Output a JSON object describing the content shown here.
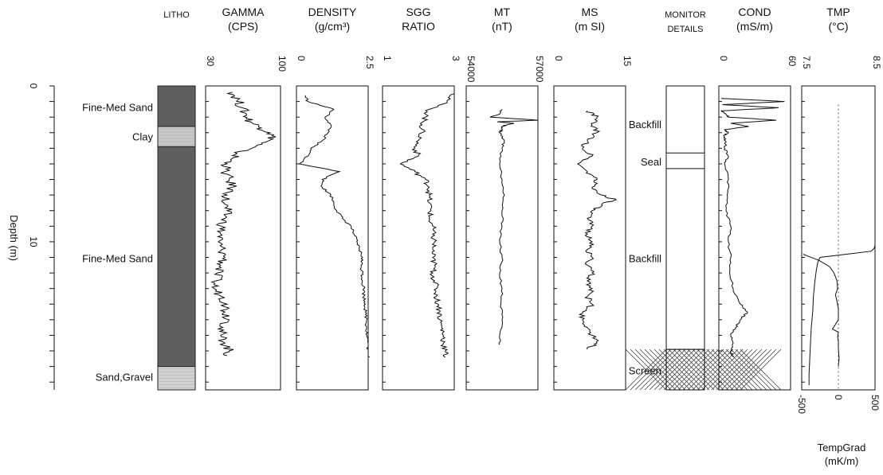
{
  "chart_data": {
    "type": "line",
    "depth_axis": {
      "label": "Depth (m)",
      "range": [
        0,
        19.5
      ],
      "ticks": [
        0,
        10
      ]
    },
    "tracks": [
      {
        "id": "litho",
        "header": [
          "LITHO"
        ],
        "type": "lithology",
        "layers": [
          {
            "name": "Fine-Med Sand",
            "top": 0,
            "bottom": 2.6,
            "label": "Fine-Med Sand",
            "label_depth": 1.4,
            "fill": "#5f5f5f"
          },
          {
            "name": "Clay",
            "top": 2.6,
            "bottom": 3.9,
            "label": "Clay",
            "label_depth": 3.3,
            "fill": "#c9c9c9"
          },
          {
            "name": "Fine-Med Sand",
            "top": 3.9,
            "bottom": 18.0,
            "label": "Fine-Med Sand",
            "label_depth": 11.1,
            "fill": "#5f5f5f"
          },
          {
            "name": "Sand,Gravel",
            "top": 18.0,
            "bottom": 19.5,
            "label": "Sand,Gravel",
            "label_depth": 18.7,
            "fill": "#d3d3d3"
          }
        ]
      },
      {
        "id": "gamma",
        "header": [
          "GAMMA",
          "(CPS)"
        ],
        "xlim": [
          30,
          100
        ],
        "ticks": [
          "30",
          "100"
        ],
        "series": {
          "depth": [
            0.4,
            0.9,
            1.4,
            1.9,
            2.3,
            2.7,
            3.0,
            3.4,
            3.8,
            4.2,
            4.6,
            5.0,
            5.5,
            6.0,
            6.5,
            7.0,
            7.5,
            8.0,
            8.5,
            9.0,
            9.5,
            10.0,
            10.5,
            11.0,
            11.5,
            12.0,
            12.5,
            13.0,
            13.5,
            14.0,
            14.5,
            15.0,
            15.5,
            16.0,
            16.5,
            17.0,
            17.3
          ],
          "value": [
            55,
            60,
            64,
            68,
            72,
            82,
            90,
            93,
            78,
            62,
            56,
            50,
            48,
            52,
            55,
            50,
            47,
            50,
            48,
            45,
            44,
            42,
            45,
            48,
            44,
            41,
            40,
            38,
            45,
            50,
            48,
            52,
            46,
            44,
            48,
            52,
            50
          ]
        }
      },
      {
        "id": "density",
        "header": [
          "DENSITY",
          "(g/cm³)"
        ],
        "xlim": [
          0,
          2.5
        ],
        "ticks": [
          "0",
          "2.5"
        ],
        "series": {
          "depth": [
            0.6,
            1.0,
            1.5,
            2.0,
            2.5,
            3.0,
            3.5,
            4.0,
            4.5,
            5.0,
            5.5,
            6.0,
            6.5,
            7.0,
            7.5,
            8.0,
            8.5,
            9.0,
            9.5,
            10.0,
            10.5,
            11.0,
            11.5,
            12.0,
            12.5,
            13.0,
            13.5,
            14.0,
            14.5,
            15.0,
            15.5,
            16.0,
            16.5,
            17.0,
            17.4
          ],
          "value": [
            0.3,
            0.4,
            1.3,
            1.0,
            1.2,
            1.1,
            0.9,
            0.5,
            0.4,
            0.1,
            1.5,
            0.9,
            0.9,
            1.2,
            1.3,
            1.4,
            1.6,
            1.9,
            2.0,
            2.1,
            2.2,
            2.3,
            2.25,
            2.3,
            2.3,
            2.35,
            2.35,
            2.4,
            2.4,
            2.45,
            2.45,
            2.45,
            2.5,
            2.5,
            2.55
          ]
        }
      },
      {
        "id": "sgg",
        "header": [
          "SGG",
          "RATIO"
        ],
        "xlim": [
          1,
          3
        ],
        "ticks": [
          "1",
          "3"
        ],
        "series": {
          "depth": [
            0.5,
            1.0,
            1.5,
            2.0,
            2.5,
            3.0,
            3.5,
            4.0,
            4.5,
            5.0,
            5.5,
            6.0,
            6.5,
            7.0,
            7.5,
            8.0,
            8.5,
            9.0,
            9.5,
            10.0,
            10.5,
            11.0,
            11.5,
            12.0,
            12.5,
            13.0,
            13.5,
            14.0,
            14.5,
            15.0,
            15.5,
            16.0,
            16.5,
            17.0,
            17.4
          ],
          "value": [
            3.0,
            2.8,
            2.3,
            2.2,
            2.1,
            2.1,
            2.0,
            1.9,
            2.0,
            1.5,
            1.9,
            2.2,
            2.3,
            2.3,
            2.3,
            2.35,
            2.3,
            2.4,
            2.4,
            2.45,
            2.4,
            2.4,
            2.45,
            2.4,
            2.45,
            2.5,
            2.5,
            2.55,
            2.6,
            2.6,
            2.65,
            2.7,
            2.7,
            2.75,
            2.75
          ]
        }
      },
      {
        "id": "mt",
        "header": [
          "MT",
          "(nT)"
        ],
        "xlim": [
          54000,
          57000
        ],
        "ticks": [
          "54000",
          "57000"
        ],
        "series": {
          "depth": [
            1.5,
            1.8,
            2.0,
            2.2,
            2.3,
            2.4,
            2.5,
            2.6,
            2.8,
            3.0,
            3.5,
            4.0,
            5.0,
            6.0,
            7.0,
            8.0,
            9.0,
            10.0,
            11.0,
            12.0,
            13.0,
            14.0,
            15.0,
            16.0,
            16.6
          ],
          "value": [
            55500,
            55400,
            55000,
            57000,
            55300,
            56000,
            55700,
            55500,
            55500,
            55400,
            55600,
            55500,
            55400,
            55500,
            55600,
            55500,
            55500,
            55400,
            55500,
            55400,
            55500,
            55450,
            55500,
            55400,
            55400
          ]
        }
      },
      {
        "id": "ms",
        "header": [
          "MS",
          "(m SI)"
        ],
        "xlim": [
          0,
          15
        ],
        "ticks": [
          "0",
          "15"
        ],
        "series": {
          "depth": [
            1.6,
            2.0,
            2.5,
            3.0,
            3.5,
            4.0,
            4.5,
            5.0,
            5.5,
            6.0,
            6.5,
            7.0,
            7.3,
            7.6,
            8.0,
            8.5,
            9.0,
            9.5,
            10.0,
            10.5,
            11.0,
            11.5,
            12.0,
            12.5,
            13.0,
            13.5,
            14.0,
            14.5,
            15.0,
            15.5,
            16.0,
            16.5,
            16.9
          ],
          "value": [
            7,
            9,
            8,
            9,
            7,
            6,
            8,
            5,
            7,
            9,
            8,
            10,
            13,
            10,
            8,
            7,
            8,
            7,
            8,
            7,
            8,
            7,
            8,
            7,
            8,
            7,
            8,
            6,
            6,
            7,
            8,
            9,
            7
          ]
        }
      },
      {
        "id": "monitor",
        "header": [
          "MONITOR",
          "DETAILS"
        ],
        "type": "well-construction",
        "intervals": [
          {
            "name": "Backfill",
            "top": 0,
            "bottom": 4.3,
            "label": "Backfill",
            "label_depth": 2.5,
            "fill": "none"
          },
          {
            "name": "Seal",
            "top": 4.3,
            "bottom": 5.3,
            "label": "Seal",
            "label_depth": 4.9,
            "fill": "none"
          },
          {
            "name": "Backfill",
            "top": 5.3,
            "bottom": 16.9,
            "label": "Backfill",
            "label_depth": 11.1,
            "fill": "none"
          },
          {
            "name": "Screen",
            "top": 16.9,
            "bottom": 19.5,
            "label": "Screen",
            "label_depth": 18.3,
            "fill": "crosshatch"
          }
        ]
      },
      {
        "id": "cond",
        "header": [
          "COND",
          "(mS/m)"
        ],
        "xlim": [
          0,
          60
        ],
        "ticks": [
          "0",
          "60"
        ],
        "series": {
          "depth": [
            0.8,
            1.0,
            1.2,
            1.4,
            1.6,
            1.8,
            2.0,
            2.2,
            2.4,
            2.6,
            2.8,
            3.0,
            3.2,
            3.6,
            4.0,
            4.5,
            5.0,
            6.0,
            7.0,
            8.0,
            9.0,
            10.0,
            11.0,
            12.0,
            13.0,
            14.0,
            14.5,
            15.0,
            15.5,
            16.0,
            16.5,
            17.0,
            17.4
          ],
          "value": [
            2,
            55,
            3,
            50,
            2,
            6,
            8,
            48,
            10,
            25,
            5,
            8,
            4,
            6,
            5,
            8,
            5,
            8,
            7,
            6,
            10,
            8,
            10,
            9,
            12,
            18,
            24,
            18,
            14,
            10,
            12,
            10,
            12
          ]
        }
      },
      {
        "id": "tmp",
        "header": [
          "TMP",
          "(°C)"
        ],
        "xlim": [
          7.5,
          8.5
        ],
        "ticks": [
          "7.5",
          "8.5"
        ],
        "xlabel": [
          "TempGrad",
          "(mK/m)"
        ],
        "xlim_bottom": [
          -500,
          500
        ],
        "ticks_bottom": [
          "-500",
          "0",
          "500"
        ],
        "series": [
          {
            "name": "TMP",
            "depth": [
              2.0,
              4.0,
              6.0,
              8.0,
              9.5,
              10.2,
              10.4,
              10.6,
              10.8,
              11.0,
              11.3,
              11.8,
              12.5,
              13.5,
              14.5,
              15.5,
              16.5,
              17.5,
              18.5,
              19.2
            ],
            "value": [
              8.5,
              8.5,
              8.5,
              8.5,
              8.5,
              8.5,
              8.49,
              8.45,
              8.1,
              7.75,
              7.72,
              7.7,
              7.68,
              7.66,
              7.65,
              7.63,
              7.62,
              7.61,
              7.6,
              7.6
            ]
          },
          {
            "name": "TempGrad",
            "depth": [
              10.8,
              11.2,
              11.6,
              12.0,
              12.5,
              13.0,
              13.4,
              13.8,
              14.3,
              15.0,
              15.6,
              15.8,
              16.1,
              16.4,
              16.8,
              17.5,
              18.0
            ],
            "value": [
              -480,
              -260,
              -120,
              -60,
              -20,
              -10,
              -40,
              -20,
              0,
              0,
              -80,
              0,
              -10,
              0,
              0,
              10,
              0
            ]
          }
        ]
      }
    ]
  }
}
